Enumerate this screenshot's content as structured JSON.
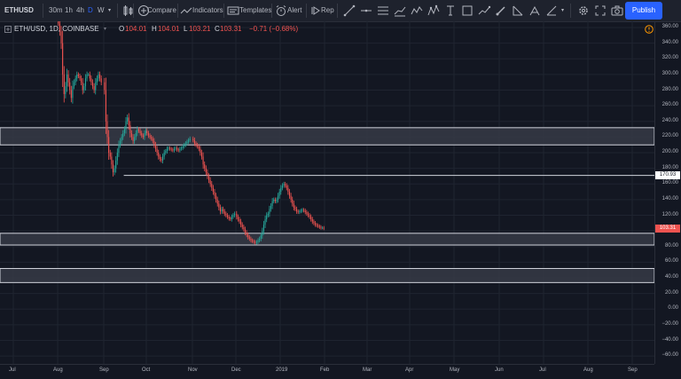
{
  "toolbar": {
    "symbol": "ETHUSD",
    "intervals": [
      "30m",
      "1h",
      "4h",
      "D",
      "W"
    ],
    "active_interval": "D",
    "compare_label": "Compare",
    "indicators_label": "Indicators",
    "templates_label": "Templates",
    "alert_label": "Alert",
    "replay_label": "Rep",
    "publish_label": "Publish"
  },
  "legend": {
    "title": "ETH/USD, 1D, COINBASE",
    "o_label": "O",
    "o_value": "104.01",
    "h_label": "H",
    "h_value": "104.01",
    "l_label": "L",
    "l_value": "103.21",
    "c_label": "C",
    "c_value": "103.31",
    "change": "−0.71 (−0.68%)"
  },
  "colors": {
    "background": "#131722",
    "up": "#26a69a",
    "down": "#ef5350",
    "accent": "#2962ff",
    "zone_fill": "#363a45"
  },
  "price_axis": {
    "ticks": [
      "360.00",
      "340.00",
      "320.00",
      "300.00",
      "280.00",
      "260.00",
      "240.00",
      "220.00",
      "200.00",
      "180.00",
      "160.00",
      "140.00",
      "120.00",
      "100.00",
      "80.00",
      "60.00",
      "40.00",
      "20.00",
      "0.00",
      "−20.00",
      "−40.00",
      "−60.00"
    ],
    "last_price": "103.31",
    "line_price": "170.93"
  },
  "time_axis": {
    "labels": [
      "Jul",
      "Aug",
      "Sep",
      "Oct",
      "Nov",
      "Dec",
      "2019",
      "Feb",
      "Mar",
      "Apr",
      "May",
      "Jun",
      "Jul",
      "Aug",
      "Sep"
    ]
  },
  "chart_data": {
    "type": "candlestick",
    "symbol": "ETH/USD",
    "interval": "1D",
    "exchange": "COINBASE",
    "ylim": [
      -70,
      368
    ],
    "zones": [
      {
        "from": 210,
        "to": 232
      },
      {
        "from": 82,
        "to": 97
      },
      {
        "from": 34,
        "to": 52
      }
    ],
    "horizontal_line": 170.93,
    "close_series": [
      {
        "month": "Aug",
        "values": [
          365,
          355,
          340,
          300,
          275,
          285,
          300,
          290,
          280,
          270,
          285,
          290,
          295,
          300,
          298,
          295,
          290,
          280,
          285,
          295,
          300,
          300,
          295,
          290,
          285,
          280,
          290,
          295,
          300,
          295,
          290
        ]
      },
      {
        "month": "Sep",
        "values": [
          280,
          240,
          220,
          200,
          195,
          185,
          175,
          180,
          190,
          200,
          210,
          215,
          220,
          225,
          230,
          240,
          245,
          235,
          225,
          220,
          215,
          220,
          225,
          230,
          228,
          225,
          222,
          220,
          225,
          228
        ]
      },
      {
        "month": "Oct",
        "values": [
          225,
          222,
          220,
          218,
          215,
          210,
          205,
          200,
          195,
          192,
          190,
          195,
          200,
          202,
          205,
          206,
          205,
          204,
          203,
          205,
          206,
          204,
          203,
          205,
          206,
          208,
          210,
          212,
          214,
          216,
          218
        ]
      },
      {
        "month": "Nov",
        "values": [
          216,
          212,
          210,
          208,
          205,
          200,
          195,
          185,
          180,
          175,
          170,
          165,
          160,
          155,
          150,
          145,
          140,
          135,
          130,
          125,
          128,
          125,
          122,
          120,
          118,
          116,
          115,
          118,
          120,
          122
        ]
      },
      {
        "month": "Dec",
        "values": [
          118,
          115,
          112,
          108,
          105,
          102,
          98,
          95,
          92,
          90,
          88,
          87,
          86,
          85,
          86,
          88,
          90,
          94,
          100,
          108,
          115,
          120,
          122,
          128,
          132,
          138,
          140,
          138,
          140,
          145,
          150
        ]
      },
      {
        "month": "Jan",
        "values": [
          155,
          158,
          160,
          158,
          155,
          150,
          145,
          140,
          135,
          130,
          128,
          125,
          124,
          125,
          126,
          127,
          126,
          124,
          122,
          120,
          118,
          115,
          112,
          110,
          108,
          107,
          106,
          105,
          104,
          104,
          103.31
        ]
      }
    ]
  }
}
